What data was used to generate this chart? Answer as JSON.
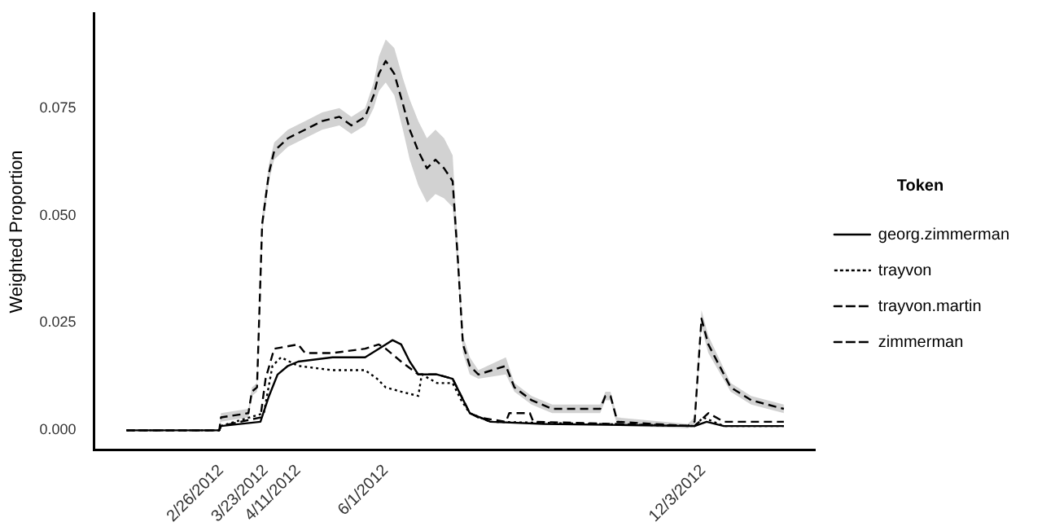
{
  "chart_data": {
    "type": "line",
    "ylabel": "Weighted Proportion",
    "legend_title": "Token",
    "legend": "right",
    "grid": false,
    "marker": "none",
    "xlim": [
      "2011-12-14",
      "2013-02-06"
    ],
    "xticks": [
      {
        "value": "2012-02-26",
        "label": "2/26/2012"
      },
      {
        "value": "2012-03-23",
        "label": "3/23/2012"
      },
      {
        "value": "2012-04-11",
        "label": "4/11/2012"
      },
      {
        "value": "2012-06-01",
        "label": "6/1/2012"
      },
      {
        "value": "2012-12-03",
        "label": "12/3/2012"
      }
    ],
    "ylim": [
      -0.0045,
      0.097
    ],
    "yticks": [
      {
        "value": 0,
        "label": "0.000"
      },
      {
        "value": 0.025,
        "label": "0.025"
      },
      {
        "value": 0.05,
        "label": "0.050"
      },
      {
        "value": 0.075,
        "label": "0.075"
      }
    ],
    "series": [
      {
        "name": "georg.zimmerman",
        "color": "#000000",
        "line_style": "solid",
        "x": [
          "2012-01-02",
          "2012-02-25",
          "2012-02-26",
          "2012-03-20",
          "2012-03-25",
          "2012-03-30",
          "2012-04-05",
          "2012-04-11",
          "2012-05-01",
          "2012-05-20",
          "2012-05-28",
          "2012-06-01",
          "2012-06-05",
          "2012-06-10",
          "2012-06-15",
          "2012-06-20",
          "2012-07-01",
          "2012-07-10",
          "2012-07-15",
          "2012-07-20",
          "2012-08-01",
          "2012-09-01",
          "2012-11-28",
          "2012-12-05",
          "2012-12-15",
          "2013-01-19"
        ],
        "values": [
          0,
          0,
          0.001,
          0.002,
          0.008,
          0.013,
          0.015,
          0.016,
          0.017,
          0.017,
          0.019,
          0.02,
          0.021,
          0.02,
          0.016,
          0.013,
          0.013,
          0.012,
          0.008,
          0.004,
          0.002,
          0.0015,
          0.001,
          0.002,
          0.001,
          0.001
        ]
      },
      {
        "name": "trayvon",
        "color": "#000000",
        "line_style": "dotted",
        "x": [
          "2012-01-02",
          "2012-02-25",
          "2012-02-26",
          "2012-03-22",
          "2012-03-27",
          "2012-04-01",
          "2012-04-11",
          "2012-05-01",
          "2012-05-20",
          "2012-05-27",
          "2012-06-01",
          "2012-06-10",
          "2012-06-20",
          "2012-06-22",
          "2012-07-01",
          "2012-07-10",
          "2012-07-15",
          "2012-07-20",
          "2012-08-01",
          "2012-11-28",
          "2012-12-03",
          "2012-12-15",
          "2013-01-19"
        ],
        "values": [
          0,
          0,
          0.001,
          0.004,
          0.015,
          0.017,
          0.015,
          0.014,
          0.014,
          0.012,
          0.01,
          0.009,
          0.008,
          0.013,
          0.011,
          0.011,
          0.007,
          0.004,
          0.002,
          0.001,
          0.003,
          0.001,
          0.001
        ]
      },
      {
        "name": "trayvon.martin",
        "color": "#000000",
        "line_style": "dashed",
        "x": [
          "2012-01-02",
          "2012-02-25",
          "2012-02-26",
          "2012-03-20",
          "2012-03-23",
          "2012-03-28",
          "2012-04-11",
          "2012-04-15",
          "2012-05-01",
          "2012-05-20",
          "2012-05-28",
          "2012-06-01",
          "2012-06-10",
          "2012-06-20",
          "2012-07-01",
          "2012-07-10",
          "2012-07-15",
          "2012-07-20",
          "2012-07-25",
          "2012-08-10",
          "2012-08-12",
          "2012-08-24",
          "2012-08-26",
          "2012-11-28",
          "2012-12-06",
          "2012-12-15",
          "2013-01-19"
        ],
        "values": [
          0,
          0,
          0.001,
          0.003,
          0.012,
          0.019,
          0.02,
          0.018,
          0.018,
          0.019,
          0.02,
          0.019,
          0.016,
          0.013,
          0.013,
          0.012,
          0.008,
          0.004,
          0.003,
          0.002,
          0.004,
          0.004,
          0.002,
          0.001,
          0.004,
          0.002,
          0.002
        ]
      },
      {
        "name": "zimmerman",
        "color": "#000000",
        "line_style": "dashed",
        "x": [
          "2012-01-02",
          "2012-02-25",
          "2012-02-26",
          "2012-03-13",
          "2012-03-15",
          "2012-03-18",
          "2012-03-21",
          "2012-03-25",
          "2012-03-28",
          "2012-04-05",
          "2012-04-15",
          "2012-04-25",
          "2012-05-05",
          "2012-05-12",
          "2012-05-20",
          "2012-05-25",
          "2012-05-28",
          "2012-06-01",
          "2012-06-06",
          "2012-06-11",
          "2012-06-15",
          "2012-06-20",
          "2012-06-25",
          "2012-06-30",
          "2012-07-05",
          "2012-07-10",
          "2012-07-13",
          "2012-07-16",
          "2012-07-20",
          "2012-07-25",
          "2012-08-10",
          "2012-08-15",
          "2012-08-25",
          "2012-09-06",
          "2012-10-04",
          "2012-10-07",
          "2012-10-10",
          "2012-10-14",
          "2012-11-24",
          "2012-11-28",
          "2012-12-02",
          "2012-12-06",
          "2012-12-19",
          "2012-12-31",
          "2013-01-19"
        ],
        "values": [
          0,
          0,
          0.003,
          0.004,
          0.009,
          0.01,
          0.048,
          0.06,
          0.065,
          0.068,
          0.07,
          0.072,
          0.073,
          0.071,
          0.073,
          0.078,
          0.083,
          0.086,
          0.083,
          0.076,
          0.07,
          0.065,
          0.061,
          0.063,
          0.061,
          0.058,
          0.04,
          0.02,
          0.015,
          0.013,
          0.015,
          0.01,
          0.007,
          0.005,
          0.005,
          0.008,
          0.008,
          0.002,
          0.001,
          0.002,
          0.026,
          0.02,
          0.01,
          0.007,
          0.005
        ],
        "lower": [
          0,
          0,
          0.002,
          0.003,
          0.008,
          0.009,
          0.046,
          0.058,
          0.063,
          0.066,
          0.068,
          0.07,
          0.071,
          0.069,
          0.071,
          0.075,
          0.079,
          0.081,
          0.078,
          0.07,
          0.063,
          0.057,
          0.053,
          0.055,
          0.054,
          0.052,
          0.037,
          0.018,
          0.013,
          0.012,
          0.013,
          0.009,
          0.006,
          0.004,
          0.004,
          0.007,
          0.007,
          0.001,
          0.0005,
          0.001,
          0.024,
          0.018,
          0.009,
          0.006,
          0.004
        ],
        "upper": [
          0,
          0,
          0.004,
          0.005,
          0.01,
          0.011,
          0.05,
          0.062,
          0.067,
          0.07,
          0.072,
          0.074,
          0.075,
          0.073,
          0.075,
          0.081,
          0.087,
          0.091,
          0.089,
          0.082,
          0.077,
          0.072,
          0.068,
          0.07,
          0.068,
          0.064,
          0.043,
          0.022,
          0.017,
          0.014,
          0.017,
          0.011,
          0.008,
          0.006,
          0.006,
          0.009,
          0.009,
          0.003,
          0.0015,
          0.003,
          0.028,
          0.022,
          0.011,
          0.008,
          0.006
        ]
      }
    ]
  }
}
